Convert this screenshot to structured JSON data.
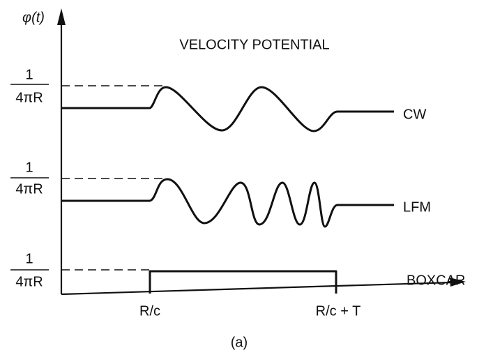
{
  "axis_label": "φ(t)",
  "title": "VELOCITY POTENTIAL",
  "amplitude_labels": [
    {
      "numerator": "1",
      "denominator": "4πR"
    },
    {
      "numerator": "1",
      "denominator": "4πR"
    },
    {
      "numerator": "1",
      "denominator": "4πR"
    }
  ],
  "curves": [
    {
      "label": "CW"
    },
    {
      "label": "LFM"
    },
    {
      "label": "BOXCAR"
    }
  ],
  "time_marks": [
    "R/c",
    "R/c + T"
  ],
  "caption": "(a)"
}
